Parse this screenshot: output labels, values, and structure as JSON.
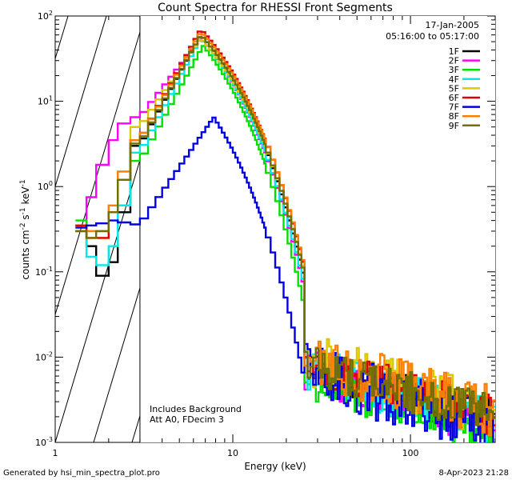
{
  "chart_data": {
    "type": "line",
    "title": "Count Spectra for RHESSI Front Segments",
    "xlabel": "Energy (keV)",
    "ylabel_main": "counts cm",
    "ylabel_sup1": "-2",
    "ylabel_mid": " s",
    "ylabel_sup2": "-1",
    "ylabel_end": " keV",
    "ylabel_sup3": "-1",
    "xscale": "log",
    "yscale": "log",
    "xlim": [
      1.0,
      300.0
    ],
    "ylim": [
      0.001,
      100.0
    ],
    "x_ticks": [
      {
        "value": 1,
        "label": "1"
      },
      {
        "value": 10,
        "label": "10"
      },
      {
        "value": 100,
        "label": "100"
      }
    ],
    "y_ticks": [
      {
        "value": 100,
        "base": "10",
        "exp": "2"
      },
      {
        "value": 10,
        "base": "10",
        "exp": "1"
      },
      {
        "value": 1,
        "base": "10",
        "exp": "0"
      },
      {
        "value": 0.1,
        "base": "10",
        "exp": "-1"
      },
      {
        "value": 0.01,
        "base": "10",
        "exp": "-2"
      },
      {
        "value": 0.001,
        "base": "10",
        "exp": "-3"
      }
    ],
    "hatched_region_max": 3.0,
    "annotations": {
      "date": "17-Jan-2005",
      "time_range": "05:16:00 to 05:17:00",
      "background": "Includes Background",
      "attenuator": "Att A0, FDecim 3",
      "generated_by": "Generated by hsi_min_spectra_plot.pro",
      "timestamp": "8-Apr-2023 21:28"
    },
    "series": [
      {
        "name": "1F",
        "color": "#000000",
        "low": [
          0.3,
          0.2,
          0.09,
          0.13,
          0.5,
          3.0
        ],
        "peak": 60,
        "peakE": 6.6,
        "scale": 0.9,
        "jit": 0.35
      },
      {
        "name": "2F",
        "color": "#ff00ff",
        "low": [
          0.35,
          0.75,
          1.8,
          3.5,
          5.5,
          6.5
        ],
        "peak": 55,
        "peakE": 6.6,
        "scale": 0.8,
        "jit": 0.4
      },
      {
        "name": "3F",
        "color": "#00e000",
        "low": [
          0.4,
          0.3,
          0.3,
          0.5,
          0.6,
          2.0
        ],
        "peak": 45,
        "peakE": 6.8,
        "scale": 0.6,
        "jit": 0.35
      },
      {
        "name": "4F",
        "color": "#00e8e8",
        "low": [
          0.35,
          0.15,
          0.12,
          0.2,
          0.6,
          2.5
        ],
        "peak": 55,
        "peakE": 6.6,
        "scale": 0.85,
        "jit": 0.4
      },
      {
        "name": "5F",
        "color": "#d8c800",
        "low": [
          0.35,
          0.25,
          0.25,
          0.5,
          1.5,
          5.0
        ],
        "peak": 55,
        "peakE": 6.6,
        "scale": 1.1,
        "jit": 0.45
      },
      {
        "name": "6F",
        "color": "#e00000",
        "low": [
          0.35,
          0.25,
          0.25,
          0.5,
          1.2,
          3.5
        ],
        "peak": 70,
        "peakE": 6.6,
        "scale": 1.0,
        "jit": 0.35
      },
      {
        "name": "7F",
        "color": "#0000e0",
        "low": [
          0.33,
          0.35,
          0.37,
          0.4,
          0.38,
          0.36
        ],
        "peak": 6.5,
        "peakE": 7.8,
        "scale": 0.75,
        "jit": 0.5
      },
      {
        "name": "8F",
        "color": "#ff8000",
        "low": [
          0.3,
          0.3,
          0.3,
          0.6,
          1.5,
          3.5
        ],
        "peak": 65,
        "peakE": 6.6,
        "scale": 1.1,
        "jit": 0.45
      },
      {
        "name": "9F",
        "color": "#707000",
        "low": [
          0.3,
          0.25,
          0.3,
          0.5,
          1.2,
          3.2
        ],
        "peak": 60,
        "peakE": 6.6,
        "scale": 1.0,
        "jit": 0.35
      }
    ]
  }
}
